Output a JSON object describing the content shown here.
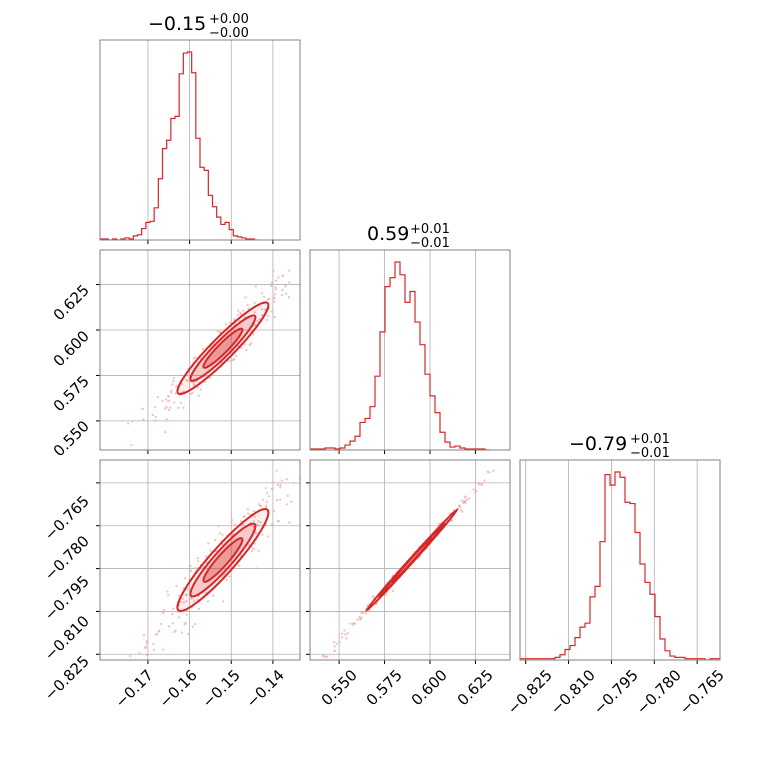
{
  "colors": {
    "main": "#d62728",
    "scatter": "#f4a6a6",
    "grid": "#b0b0b0",
    "frame": "#808080"
  },
  "titles": [
    {
      "value": "−0.15",
      "plus": "+0.00",
      "minus": "−0.00"
    },
    {
      "value": "0.59",
      "plus": "+0.01",
      "minus": "−0.01"
    },
    {
      "value": "−0.79",
      "plus": "+0.01",
      "minus": "−0.01"
    }
  ],
  "axes": {
    "x1_ticks": [
      "−0.17",
      "−0.16",
      "−0.15",
      "−0.14"
    ],
    "x2_ticks": [
      "0.550",
      "0.575",
      "0.600",
      "0.625"
    ],
    "x3_ticks": [
      "−0.825",
      "−0.810",
      "−0.795",
      "−0.780",
      "−0.765"
    ],
    "y2_ticks": [
      "0.550",
      "0.575",
      "0.600",
      "0.625"
    ],
    "y3_ticks": [
      "−0.765",
      "−0.780",
      "−0.795",
      "−0.810",
      "−0.825"
    ]
  },
  "chart_data": {
    "type": "corner",
    "params": 3,
    "ranges": [
      [
        -0.1815,
        -0.1335
      ],
      [
        0.534,
        0.644
      ],
      [
        -0.827,
        -0.757
      ]
    ],
    "ticks": [
      [
        -0.17,
        -0.16,
        -0.15,
        -0.14
      ],
      [
        0.55,
        0.575,
        0.6,
        0.625
      ],
      [
        -0.825,
        -0.81,
        -0.795,
        -0.78,
        -0.765
      ]
    ],
    "grid": true,
    "histograms": [
      {
        "param": 0,
        "bin_edges_start": -0.1815,
        "bin_width": 0.001,
        "counts": [
          1,
          1,
          0,
          1,
          0,
          1,
          2,
          1,
          4,
          5,
          11,
          17,
          18,
          31,
          59,
          88,
          96,
          117,
          119,
          160,
          180,
          181,
          161,
          98,
          70,
          67,
          43,
          32,
          22,
          15,
          17,
          10,
          4,
          3,
          2,
          1,
          1,
          0
        ]
      },
      {
        "param": 1,
        "bin_edges_start": 0.534,
        "bin_width": 0.00275,
        "counts": [
          1,
          1,
          1,
          2,
          2,
          1,
          2,
          5,
          9,
          14,
          28,
          32,
          44,
          75,
          120,
          166,
          175,
          191,
          178,
          150,
          161,
          130,
          107,
          77,
          55,
          38,
          18,
          8,
          3,
          4,
          2,
          1,
          1,
          1,
          1,
          0
        ]
      },
      {
        "param": 2,
        "bin_edges_start": -0.827,
        "bin_width": 0.00175,
        "counts": [
          1,
          1,
          1,
          1,
          1,
          1,
          1,
          2,
          4,
          8,
          11,
          17,
          25,
          28,
          48,
          56,
          90,
          141,
          133,
          143,
          139,
          120,
          119,
          97,
          73,
          59,
          50,
          33,
          16,
          7,
          3,
          2,
          2,
          1,
          1,
          1,
          1,
          0,
          1,
          1
        ]
      }
    ],
    "panels_2d": [
      {
        "x_param": 0,
        "y_param": 1,
        "x_center": -0.152,
        "y_center": 0.59,
        "sx": 0.0052,
        "sy": 0.012,
        "rho": 0.94
      },
      {
        "x_param": 0,
        "y_param": 2,
        "x_center": -0.152,
        "y_center": -0.792,
        "sx": 0.0052,
        "sy": 0.0085,
        "rho": 0.93
      },
      {
        "x_param": 1,
        "y_param": 2,
        "x_center": 0.59,
        "y_center": -0.792,
        "sx": 0.012,
        "sy": 0.0085,
        "rho": 0.998
      }
    ]
  }
}
